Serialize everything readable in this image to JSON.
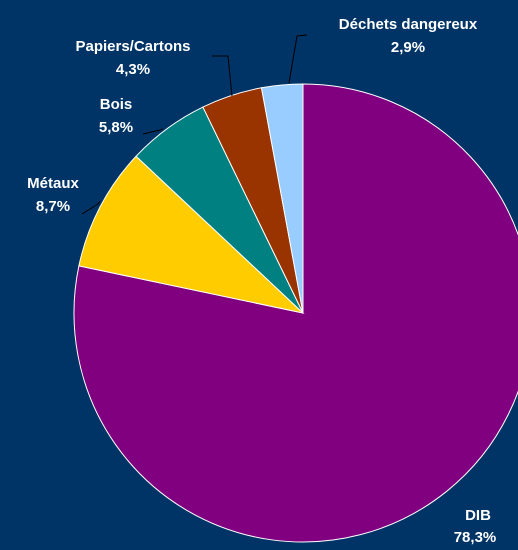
{
  "chart_data": {
    "type": "pie",
    "title": "",
    "start_angle_deg": 0,
    "direction": "clockwise",
    "slices": [
      {
        "name": "DIB",
        "value": 78.3,
        "label": "78,3%",
        "color": "#800080"
      },
      {
        "name": "Métaux",
        "value": 8.7,
        "label": "8,7%",
        "color": "#FFCC00"
      },
      {
        "name": "Bois",
        "value": 5.8,
        "label": "5,8%",
        "color": "#008080"
      },
      {
        "name": "Papiers/Cartons",
        "value": 4.3,
        "label": "4,3%",
        "color": "#993300"
      },
      {
        "name": "Déchets dangereux",
        "value": 2.9,
        "label": "2,9%",
        "color": "#99CCFF"
      }
    ],
    "background": "#003366",
    "label_color": "#FFFFFF",
    "slice_border_color": "#FFFFFF"
  }
}
